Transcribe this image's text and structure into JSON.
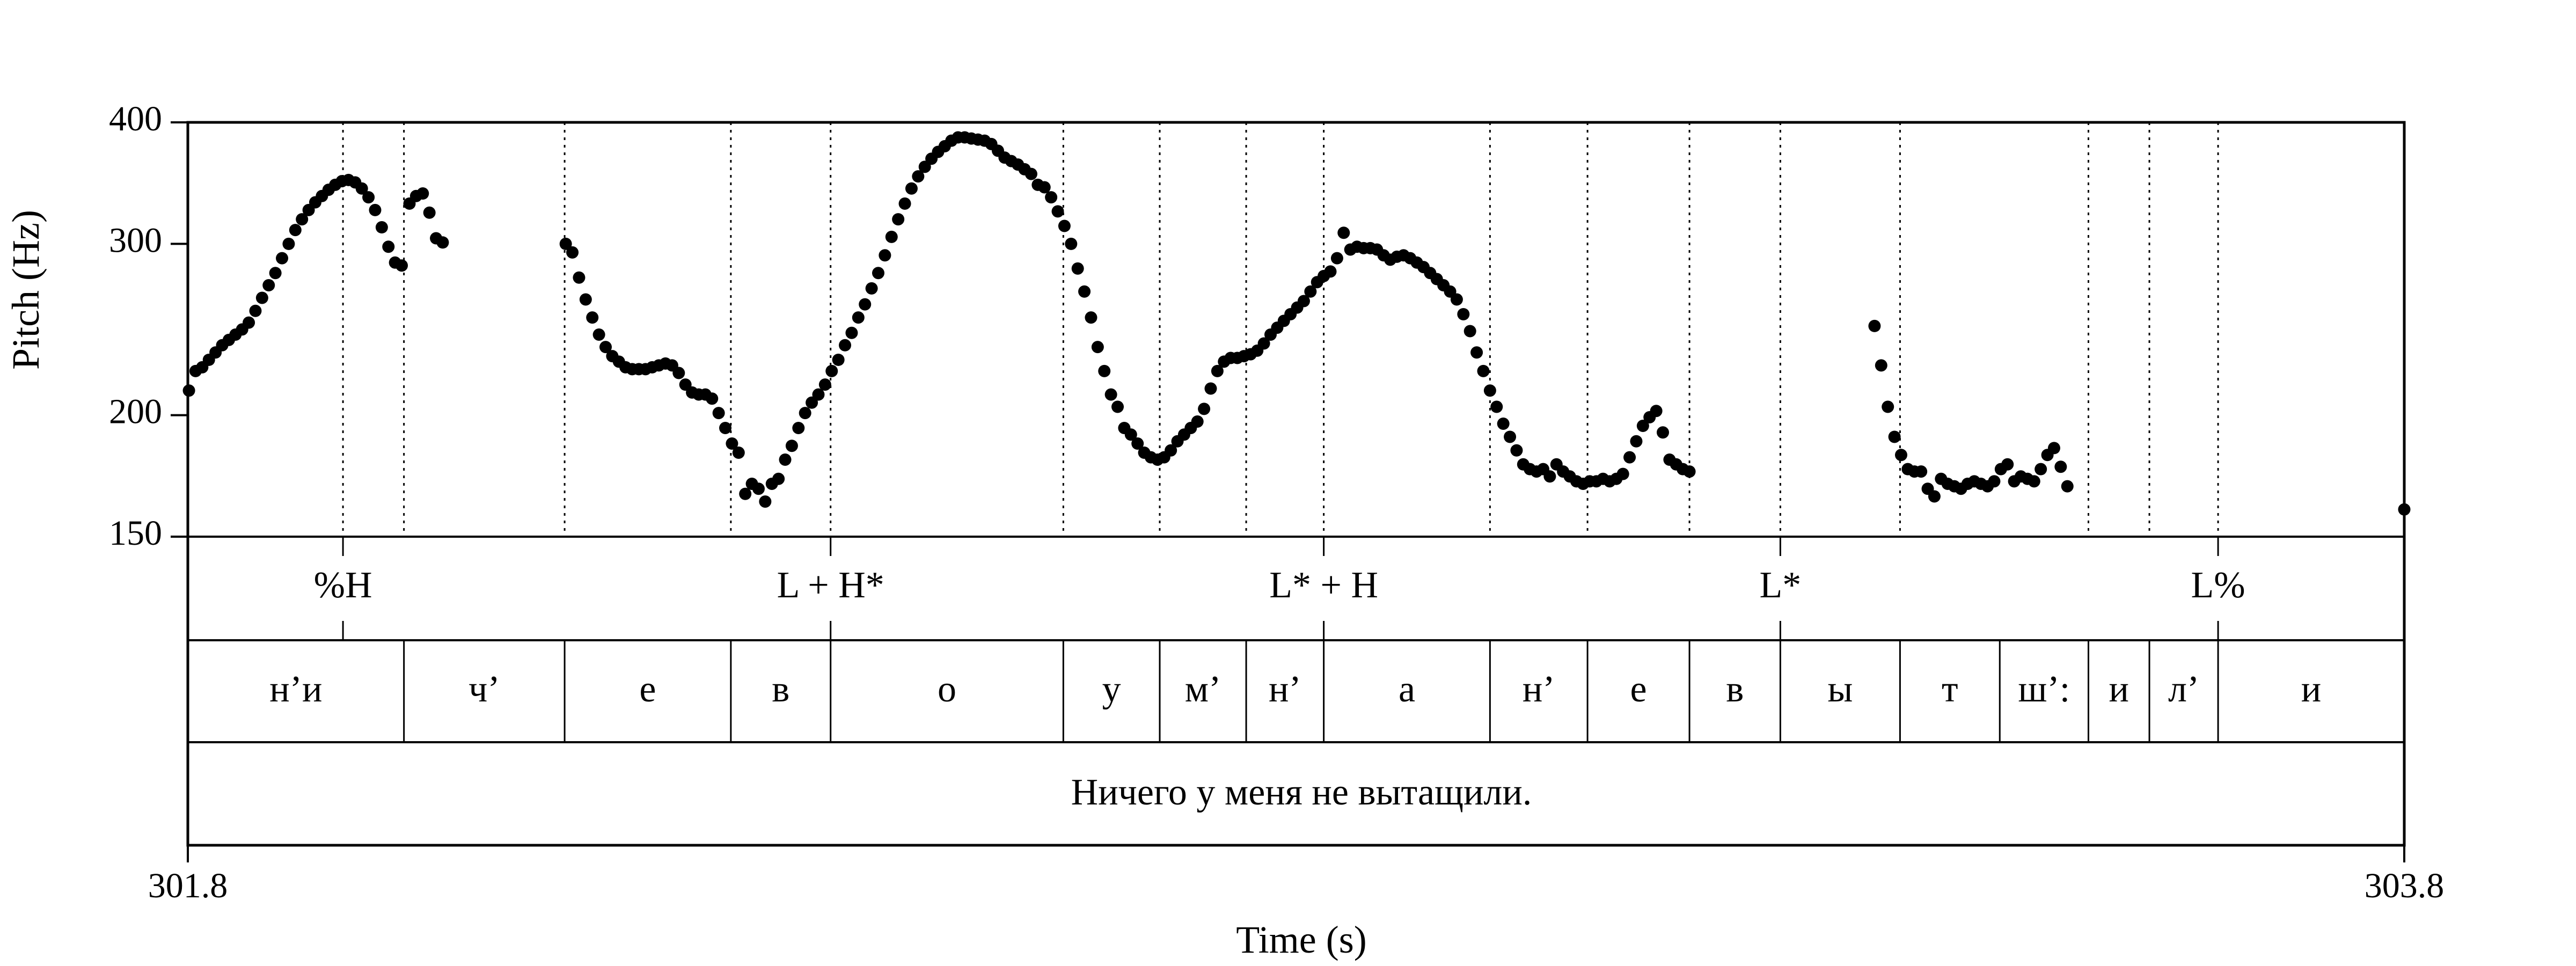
{
  "chart_data": {
    "type": "scatter",
    "title": "",
    "xlabel": "Time (s)",
    "ylabel": "Pitch (Hz)",
    "xlim": [
      301.8,
      303.8
    ],
    "ylim": [
      150,
      400
    ],
    "y_scale": "log",
    "x_tick_labels": [
      "301.8",
      "303.8"
    ],
    "y_ticks": [
      150,
      200,
      300,
      400
    ],
    "y_tick_labels": [
      "150",
      "200",
      "300",
      "400"
    ],
    "grid": "dotted vertical lines at segment boundaries and tone events",
    "pitch_points": [
      [
        301.801,
        212
      ],
      [
        301.807,
        222
      ],
      [
        301.813,
        224
      ],
      [
        301.819,
        228
      ],
      [
        301.825,
        232
      ],
      [
        301.831,
        236
      ],
      [
        301.837,
        239
      ],
      [
        301.843,
        242
      ],
      [
        301.849,
        245
      ],
      [
        301.855,
        249
      ],
      [
        301.861,
        256
      ],
      [
        301.867,
        264
      ],
      [
        301.873,
        272
      ],
      [
        301.879,
        280
      ],
      [
        301.885,
        290
      ],
      [
        301.891,
        300
      ],
      [
        301.897,
        310
      ],
      [
        301.903,
        318
      ],
      [
        301.909,
        325
      ],
      [
        301.915,
        331
      ],
      [
        301.921,
        336
      ],
      [
        301.927,
        341
      ],
      [
        301.933,
        345
      ],
      [
        301.939,
        348
      ],
      [
        301.945,
        349
      ],
      [
        301.951,
        347
      ],
      [
        301.957,
        342
      ],
      [
        301.963,
        335
      ],
      [
        301.969,
        325
      ],
      [
        301.975,
        312
      ],
      [
        301.981,
        298
      ],
      [
        301.987,
        287
      ],
      [
        301.993,
        285
      ],
      [
        302.0,
        330
      ],
      [
        302.006,
        336
      ],
      [
        302.012,
        338
      ],
      [
        302.018,
        323
      ],
      [
        302.024,
        304
      ],
      [
        302.03,
        301
      ],
      [
        302.141,
        300
      ],
      [
        302.147,
        294
      ],
      [
        302.153,
        277
      ],
      [
        302.159,
        263
      ],
      [
        302.165,
        252
      ],
      [
        302.171,
        242
      ],
      [
        302.177,
        235
      ],
      [
        302.183,
        230
      ],
      [
        302.189,
        227
      ],
      [
        302.195,
        224
      ],
      [
        302.201,
        223
      ],
      [
        302.207,
        223
      ],
      [
        302.213,
        223
      ],
      [
        302.219,
        224
      ],
      [
        302.225,
        225
      ],
      [
        302.231,
        226
      ],
      [
        302.237,
        225
      ],
      [
        302.243,
        221
      ],
      [
        302.249,
        215
      ],
      [
        302.255,
        211
      ],
      [
        302.261,
        210
      ],
      [
        302.267,
        210
      ],
      [
        302.273,
        208
      ],
      [
        302.279,
        201
      ],
      [
        302.285,
        194
      ],
      [
        302.291,
        187
      ],
      [
        302.297,
        183
      ],
      [
        302.303,
        166
      ],
      [
        302.309,
        170
      ],
      [
        302.315,
        168
      ],
      [
        302.321,
        163
      ],
      [
        302.327,
        170
      ],
      [
        302.333,
        172
      ],
      [
        302.339,
        180
      ],
      [
        302.345,
        186
      ],
      [
        302.351,
        194
      ],
      [
        302.357,
        201
      ],
      [
        302.363,
        206
      ],
      [
        302.369,
        210
      ],
      [
        302.375,
        215
      ],
      [
        302.381,
        222
      ],
      [
        302.387,
        228
      ],
      [
        302.393,
        236
      ],
      [
        302.399,
        243
      ],
      [
        302.405,
        252
      ],
      [
        302.411,
        260
      ],
      [
        302.417,
        270
      ],
      [
        302.423,
        280
      ],
      [
        302.429,
        292
      ],
      [
        302.435,
        305
      ],
      [
        302.441,
        318
      ],
      [
        302.447,
        330
      ],
      [
        302.453,
        342
      ],
      [
        302.459,
        352
      ],
      [
        302.465,
        360
      ],
      [
        302.471,
        367
      ],
      [
        302.477,
        373
      ],
      [
        302.483,
        378
      ],
      [
        302.489,
        383
      ],
      [
        302.495,
        386
      ],
      [
        302.501,
        386
      ],
      [
        302.507,
        385
      ],
      [
        302.513,
        384
      ],
      [
        302.519,
        383
      ],
      [
        302.525,
        380
      ],
      [
        302.531,
        374
      ],
      [
        302.537,
        368
      ],
      [
        302.543,
        365
      ],
      [
        302.549,
        362
      ],
      [
        302.555,
        358
      ],
      [
        302.561,
        354
      ],
      [
        302.567,
        345
      ],
      [
        302.573,
        343
      ],
      [
        302.579,
        335
      ],
      [
        302.585,
        324
      ],
      [
        302.591,
        313
      ],
      [
        302.597,
        300
      ],
      [
        302.603,
        283
      ],
      [
        302.609,
        268
      ],
      [
        302.615,
        252
      ],
      [
        302.621,
        235
      ],
      [
        302.627,
        222
      ],
      [
        302.633,
        210
      ],
      [
        302.639,
        204
      ],
      [
        302.645,
        194
      ],
      [
        302.651,
        191
      ],
      [
        302.657,
        187
      ],
      [
        302.663,
        183
      ],
      [
        302.669,
        181
      ],
      [
        302.675,
        180
      ],
      [
        302.681,
        181
      ],
      [
        302.687,
        184
      ],
      [
        302.693,
        188
      ],
      [
        302.699,
        191
      ],
      [
        302.705,
        194
      ],
      [
        302.711,
        197
      ],
      [
        302.717,
        203
      ],
      [
        302.723,
        213
      ],
      [
        302.729,
        222
      ],
      [
        302.735,
        227
      ],
      [
        302.741,
        229
      ],
      [
        302.747,
        229
      ],
      [
        302.753,
        230
      ],
      [
        302.759,
        231
      ],
      [
        302.765,
        233
      ],
      [
        302.771,
        237
      ],
      [
        302.777,
        242
      ],
      [
        302.783,
        246
      ],
      [
        302.789,
        250
      ],
      [
        302.795,
        254
      ],
      [
        302.801,
        258
      ],
      [
        302.807,
        262
      ],
      [
        302.813,
        268
      ],
      [
        302.819,
        274
      ],
      [
        302.825,
        278
      ],
      [
        302.831,
        281
      ],
      [
        302.837,
        290
      ],
      [
        302.843,
        308
      ],
      [
        302.849,
        296
      ],
      [
        302.855,
        298
      ],
      [
        302.861,
        297
      ],
      [
        302.867,
        297
      ],
      [
        302.873,
        296
      ],
      [
        302.879,
        292
      ],
      [
        302.885,
        289
      ],
      [
        302.891,
        291
      ],
      [
        302.897,
        292
      ],
      [
        302.903,
        290
      ],
      [
        302.909,
        287
      ],
      [
        302.915,
        284
      ],
      [
        302.921,
        280
      ],
      [
        302.927,
        276
      ],
      [
        302.933,
        272
      ],
      [
        302.939,
        268
      ],
      [
        302.945,
        263
      ],
      [
        302.951,
        254
      ],
      [
        302.957,
        244
      ],
      [
        302.963,
        232
      ],
      [
        302.969,
        222
      ],
      [
        302.975,
        212
      ],
      [
        302.981,
        204
      ],
      [
        302.987,
        196
      ],
      [
        302.993,
        190
      ],
      [
        302.999,
        184
      ],
      [
        303.005,
        178
      ],
      [
        303.011,
        176
      ],
      [
        303.017,
        175
      ],
      [
        303.023,
        176
      ],
      [
        303.029,
        173
      ],
      [
        303.035,
        178
      ],
      [
        303.041,
        175
      ],
      [
        303.047,
        173
      ],
      [
        303.053,
        171
      ],
      [
        303.059,
        170
      ],
      [
        303.065,
        171
      ],
      [
        303.071,
        171
      ],
      [
        303.077,
        172
      ],
      [
        303.083,
        171
      ],
      [
        303.089,
        172
      ],
      [
        303.095,
        174
      ],
      [
        303.101,
        181
      ],
      [
        303.107,
        188
      ],
      [
        303.113,
        195
      ],
      [
        303.119,
        199
      ],
      [
        303.125,
        202
      ],
      [
        303.131,
        192
      ],
      [
        303.137,
        180
      ],
      [
        303.143,
        178
      ],
      [
        303.149,
        176
      ],
      [
        303.155,
        175
      ],
      [
        303.322,
        247
      ],
      [
        303.328,
        225
      ],
      [
        303.334,
        204
      ],
      [
        303.34,
        190
      ],
      [
        303.346,
        182
      ],
      [
        303.352,
        176
      ],
      [
        303.358,
        175
      ],
      [
        303.364,
        175
      ],
      [
        303.37,
        168
      ],
      [
        303.376,
        165
      ],
      [
        303.382,
        172
      ],
      [
        303.388,
        170
      ],
      [
        303.394,
        169
      ],
      [
        303.4,
        168
      ],
      [
        303.406,
        170
      ],
      [
        303.412,
        171
      ],
      [
        303.418,
        170
      ],
      [
        303.424,
        169
      ],
      [
        303.43,
        171
      ],
      [
        303.436,
        176
      ],
      [
        303.442,
        178
      ],
      [
        303.448,
        171
      ],
      [
        303.454,
        173
      ],
      [
        303.46,
        172
      ],
      [
        303.466,
        171
      ],
      [
        303.472,
        176
      ],
      [
        303.478,
        182
      ],
      [
        303.484,
        185
      ],
      [
        303.49,
        177
      ],
      [
        303.496,
        169
      ],
      [
        303.8,
        160
      ]
    ],
    "segment_boundaries": [
      301.94,
      301.995,
      302.14,
      302.29,
      302.38,
      302.59,
      302.677,
      302.755,
      302.825,
      302.975,
      303.063,
      303.155,
      303.237,
      303.345,
      303.515,
      303.57,
      303.632
    ],
    "tone_events": [
      {
        "time": 301.94,
        "label": "%H"
      },
      {
        "time": 302.38,
        "label": "L + H*"
      },
      {
        "time": 302.825,
        "label": "L* + H"
      },
      {
        "time": 303.237,
        "label": "L*"
      },
      {
        "time": 303.632,
        "label": "L%"
      }
    ],
    "segments": [
      {
        "start": 301.8,
        "end": 301.995,
        "label": "н’и"
      },
      {
        "start": 301.995,
        "end": 302.14,
        "label": "ч’"
      },
      {
        "start": 302.14,
        "end": 302.29,
        "label": "е"
      },
      {
        "start": 302.29,
        "end": 302.38,
        "label": "в"
      },
      {
        "start": 302.38,
        "end": 302.59,
        "label": "о"
      },
      {
        "start": 302.59,
        "end": 302.677,
        "label": "у"
      },
      {
        "start": 302.677,
        "end": 302.755,
        "label": "м’"
      },
      {
        "start": 302.755,
        "end": 302.825,
        "label": "н’"
      },
      {
        "start": 302.825,
        "end": 302.975,
        "label": "а"
      },
      {
        "start": 302.975,
        "end": 303.063,
        "label": "н’"
      },
      {
        "start": 303.063,
        "end": 303.155,
        "label": "е"
      },
      {
        "start": 303.155,
        "end": 303.237,
        "label": "в"
      },
      {
        "start": 303.237,
        "end": 303.345,
        "label": "ы"
      },
      {
        "start": 303.345,
        "end": 303.435,
        "label": "т"
      },
      {
        "start": 303.435,
        "end": 303.515,
        "label": "ш’:"
      },
      {
        "start": 303.515,
        "end": 303.57,
        "label": "и"
      },
      {
        "start": 303.57,
        "end": 303.632,
        "label": "л’"
      },
      {
        "start": 303.632,
        "end": 303.8,
        "label": "и"
      }
    ],
    "sentence": "Ничего у меня не вытащили."
  }
}
